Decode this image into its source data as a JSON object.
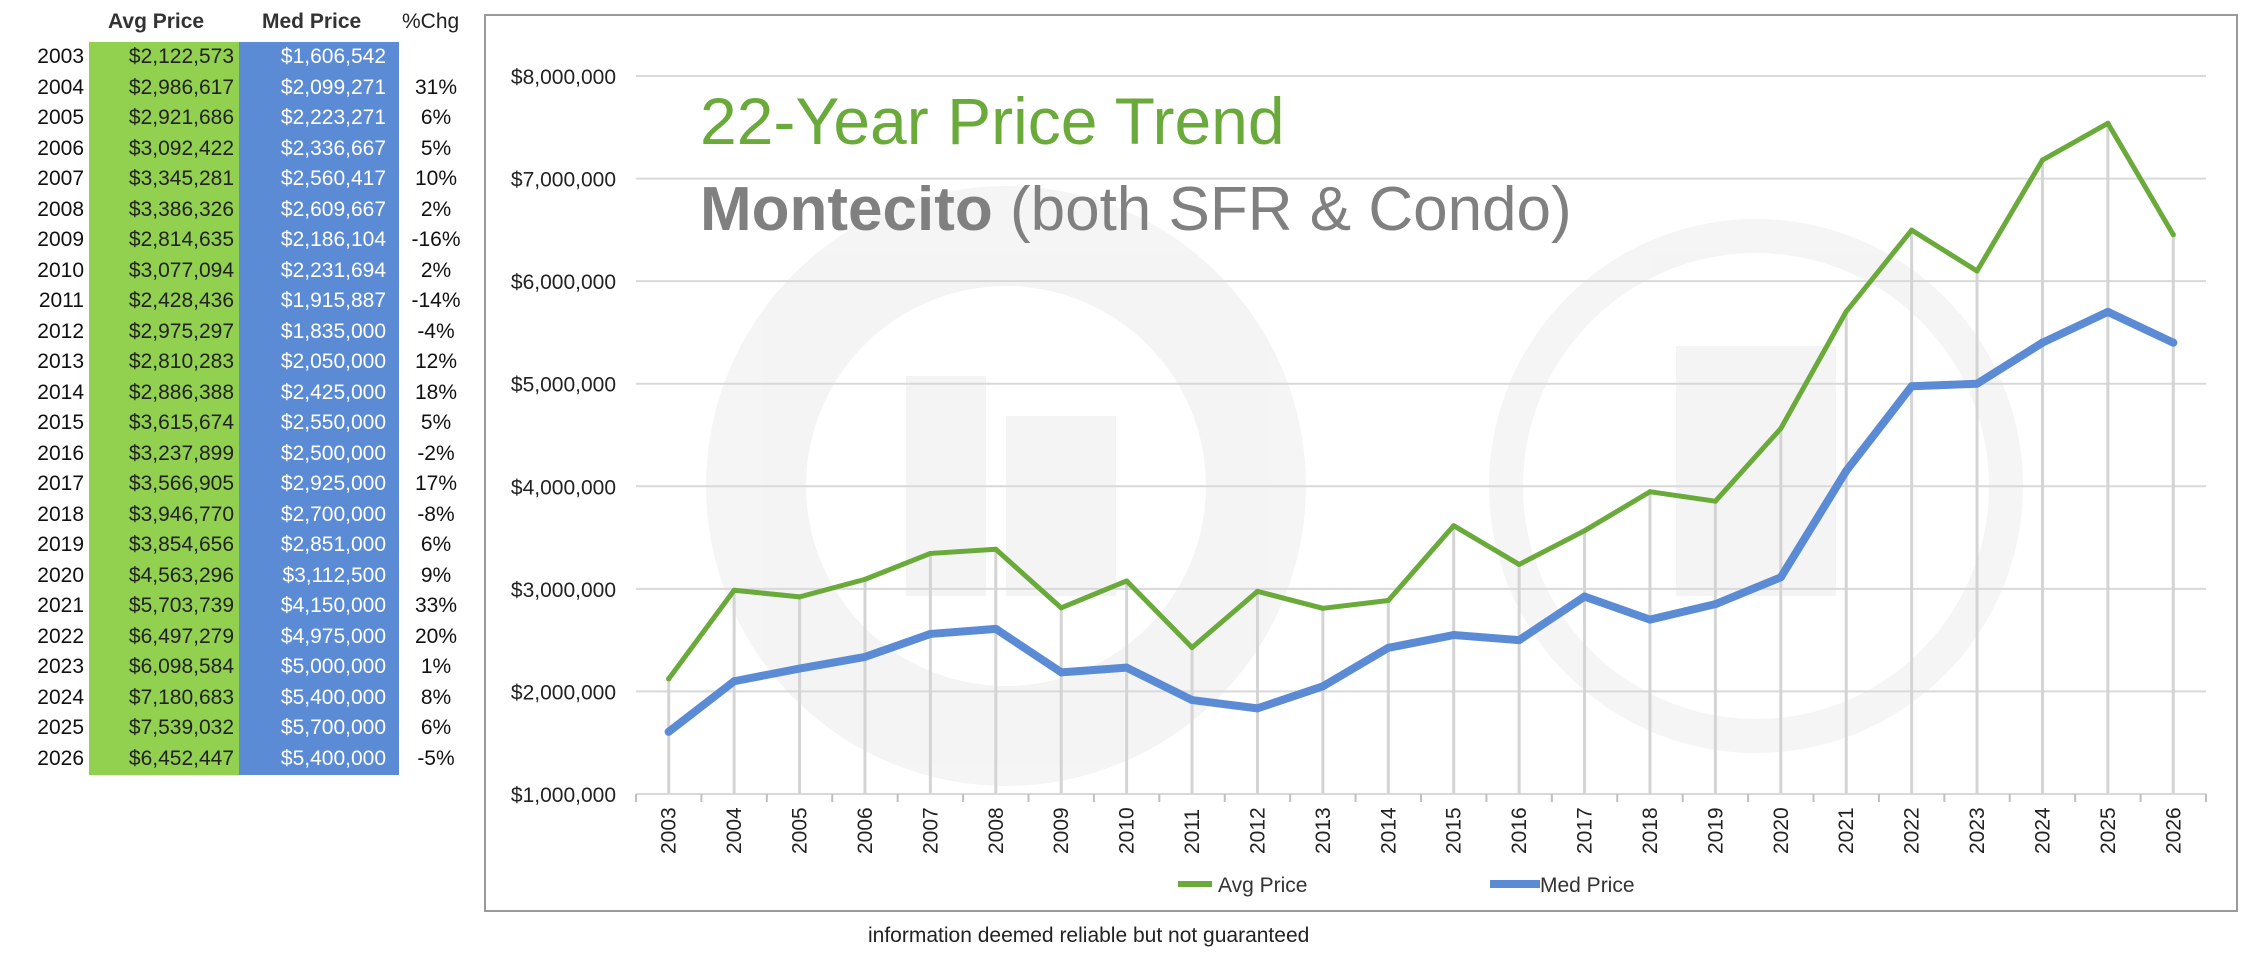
{
  "table": {
    "headers": {
      "avg": "Avg Price",
      "med": "Med Price",
      "chg": "%Chg"
    },
    "rows": [
      {
        "year": "2003",
        "avg": "$2,122,573",
        "med": "$1,606,542",
        "chg": ""
      },
      {
        "year": "2004",
        "avg": "$2,986,617",
        "med": "$2,099,271",
        "chg": "31%"
      },
      {
        "year": "2005",
        "avg": "$2,921,686",
        "med": "$2,223,271",
        "chg": "6%"
      },
      {
        "year": "2006",
        "avg": "$3,092,422",
        "med": "$2,336,667",
        "chg": "5%"
      },
      {
        "year": "2007",
        "avg": "$3,345,281",
        "med": "$2,560,417",
        "chg": "10%"
      },
      {
        "year": "2008",
        "avg": "$3,386,326",
        "med": "$2,609,667",
        "chg": "2%"
      },
      {
        "year": "2009",
        "avg": "$2,814,635",
        "med": "$2,186,104",
        "chg": "-16%"
      },
      {
        "year": "2010",
        "avg": "$3,077,094",
        "med": "$2,231,694",
        "chg": "2%"
      },
      {
        "year": "2011",
        "avg": "$2,428,436",
        "med": "$1,915,887",
        "chg": "-14%"
      },
      {
        "year": "2012",
        "avg": "$2,975,297",
        "med": "$1,835,000",
        "chg": "-4%"
      },
      {
        "year": "2013",
        "avg": "$2,810,283",
        "med": "$2,050,000",
        "chg": "12%"
      },
      {
        "year": "2014",
        "avg": "$2,886,388",
        "med": "$2,425,000",
        "chg": "18%"
      },
      {
        "year": "2015",
        "avg": "$3,615,674",
        "med": "$2,550,000",
        "chg": "5%"
      },
      {
        "year": "2016",
        "avg": "$3,237,899",
        "med": "$2,500,000",
        "chg": "-2%"
      },
      {
        "year": "2017",
        "avg": "$3,566,905",
        "med": "$2,925,000",
        "chg": "17%"
      },
      {
        "year": "2018",
        "avg": "$3,946,770",
        "med": "$2,700,000",
        "chg": "-8%"
      },
      {
        "year": "2019",
        "avg": "$3,854,656",
        "med": "$2,851,000",
        "chg": "6%"
      },
      {
        "year": "2020",
        "avg": "$4,563,296",
        "med": "$3,112,500",
        "chg": "9%"
      },
      {
        "year": "2021",
        "avg": "$5,703,739",
        "med": "$4,150,000",
        "chg": "33%"
      },
      {
        "year": "2022",
        "avg": "$6,497,279",
        "med": "$4,975,000",
        "chg": "20%"
      },
      {
        "year": "2023",
        "avg": "$6,098,584",
        "med": "$5,000,000",
        "chg": "1%"
      },
      {
        "year": "2024",
        "avg": "$7,180,683",
        "med": "$5,400,000",
        "chg": "8%"
      },
      {
        "year": "2025",
        "avg": "$7,539,032",
        "med": "$5,700,000",
        "chg": "6%"
      },
      {
        "year": "2026",
        "avg": "$6,452,447",
        "med": "$5,400,000",
        "chg": "-5%"
      }
    ]
  },
  "colors": {
    "avg": "#6aaa3a",
    "med": "#5b8bd5",
    "avg_col_bg": "#92d050",
    "med_col_bg": "#5b8bd5",
    "title_gray": "#808080",
    "grid": "#d9d9d9"
  },
  "chart_data": {
    "type": "line",
    "title": "22-Year Price Trend",
    "subtitle_bold": "Montecito",
    "subtitle_rest": " (both SFR & Condo)",
    "x": [
      "2003",
      "2004",
      "2005",
      "2006",
      "2007",
      "2008",
      "2009",
      "2010",
      "2011",
      "2012",
      "2013",
      "2014",
      "2015",
      "2016",
      "2017",
      "2018",
      "2019",
      "2020",
      "2021",
      "2022",
      "2023",
      "2024",
      "2025",
      "2026"
    ],
    "series": [
      {
        "name": "Avg Price",
        "values": [
          2122573,
          2986617,
          2921686,
          3092422,
          3345281,
          3386326,
          2814635,
          3077094,
          2428436,
          2975297,
          2810283,
          2886388,
          3615674,
          3237899,
          3566905,
          3946770,
          3854656,
          4563296,
          5703739,
          6497279,
          6098584,
          7180683,
          7539032,
          6452447
        ]
      },
      {
        "name": "Med Price",
        "values": [
          1606542,
          2099271,
          2223271,
          2336667,
          2560417,
          2609667,
          2186104,
          2231694,
          1915887,
          1835000,
          2050000,
          2425000,
          2550000,
          2500000,
          2925000,
          2700000,
          2851000,
          3112500,
          4150000,
          4975000,
          5000000,
          5400000,
          5700000,
          5400000
        ]
      }
    ],
    "ylim": [
      1000000,
      8000000
    ],
    "yticks": [
      1000000,
      2000000,
      3000000,
      4000000,
      5000000,
      6000000,
      7000000,
      8000000
    ],
    "ytick_labels": [
      "$1,000,000",
      "$2,000,000",
      "$3,000,000",
      "$4,000,000",
      "$5,000,000",
      "$6,000,000",
      "$7,000,000",
      "$8,000,000"
    ],
    "xlabel": "",
    "ylabel": "",
    "grid": true,
    "legend_position": "bottom"
  },
  "footnote": "information deemed reliable but not guaranteed"
}
